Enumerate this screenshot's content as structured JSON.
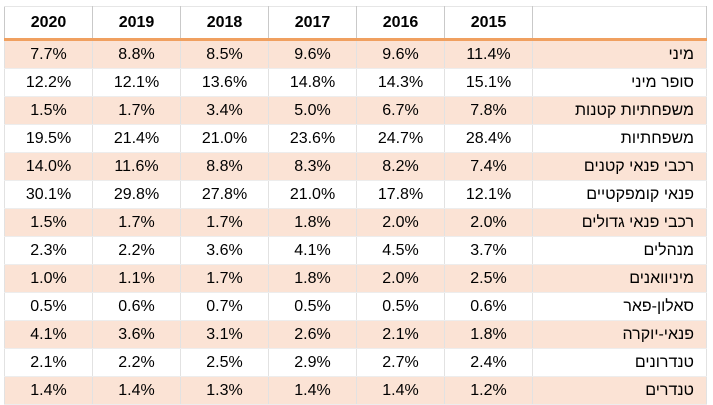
{
  "table": {
    "years": [
      "2020",
      "2019",
      "2018",
      "2017",
      "2016",
      "2015"
    ],
    "label_header": "",
    "rows": [
      {
        "label": "מיני",
        "values": [
          "7.7%",
          "8.8%",
          "8.5%",
          "9.6%",
          "9.6%",
          "11.4%"
        ]
      },
      {
        "label": "סופר מיני",
        "values": [
          "12.2%",
          "12.1%",
          "13.6%",
          "14.8%",
          "14.3%",
          "15.1%"
        ]
      },
      {
        "label": "משפחתיות קטנות",
        "values": [
          "1.5%",
          "1.7%",
          "3.4%",
          "5.0%",
          "6.7%",
          "7.8%"
        ]
      },
      {
        "label": "משפחתיות",
        "values": [
          "19.5%",
          "21.4%",
          "21.0%",
          "23.6%",
          "24.7%",
          "28.4%"
        ]
      },
      {
        "label": "רכבי פנאי קטנים",
        "values": [
          "14.0%",
          "11.6%",
          "8.8%",
          "8.3%",
          "8.2%",
          "7.4%"
        ]
      },
      {
        "label": "פנאי קומפקטיים",
        "values": [
          "30.1%",
          "29.8%",
          "27.8%",
          "21.0%",
          "17.8%",
          "12.1%"
        ]
      },
      {
        "label": "רכבי פנאי גדולים",
        "values": [
          "1.5%",
          "1.7%",
          "1.7%",
          "1.8%",
          "2.0%",
          "2.0%"
        ]
      },
      {
        "label": "מנהלים",
        "values": [
          "2.3%",
          "2.2%",
          "3.6%",
          "4.1%",
          "4.5%",
          "3.7%"
        ]
      },
      {
        "label": "מיניוואנים",
        "values": [
          "1.0%",
          "1.1%",
          "1.7%",
          "1.8%",
          "2.0%",
          "2.5%"
        ]
      },
      {
        "label": "סאלון-פאר",
        "values": [
          "0.5%",
          "0.6%",
          "0.7%",
          "0.5%",
          "0.5%",
          "0.6%"
        ]
      },
      {
        "label": "פנאי-יוקרה",
        "values": [
          "4.1%",
          "3.6%",
          "3.1%",
          "2.6%",
          "2.1%",
          "1.8%"
        ]
      },
      {
        "label": "טנדרונים",
        "values": [
          "2.1%",
          "2.2%",
          "2.5%",
          "2.9%",
          "2.7%",
          "2.4%"
        ]
      },
      {
        "label": "טנדרים",
        "values": [
          "1.4%",
          "1.4%",
          "1.3%",
          "1.4%",
          "1.4%",
          "1.2%"
        ]
      }
    ]
  },
  "colors": {
    "band": "#fbe3d5",
    "header_rule": "#f0a060"
  }
}
